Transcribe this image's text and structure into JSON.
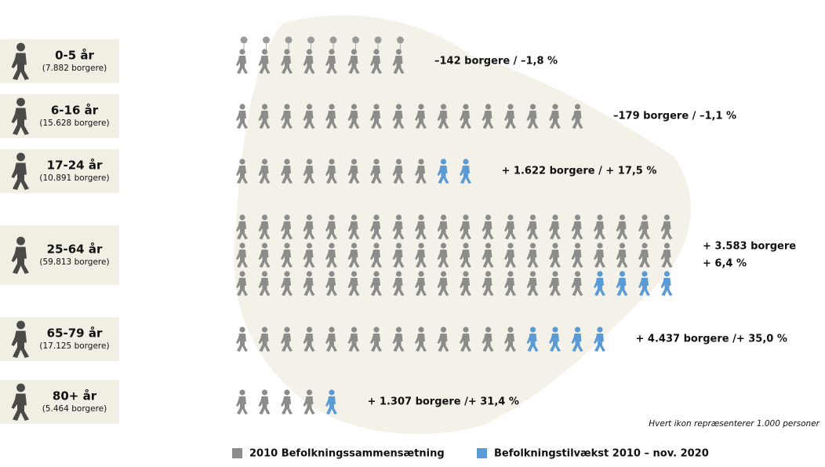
{
  "chart_data": {
    "type": "pictogram",
    "categories": [
      "0-5 år",
      "6-16 år",
      "17-24 år",
      "25-64 år",
      "65-79 år",
      "80+ år"
    ],
    "category_notes": [
      "(7.882 borgere)",
      "(15.628 borgere)",
      "(10.891 borgere)",
      "(59.813 borgere)",
      "(17.125 borgere)",
      "(5.464 borgere)"
    ],
    "series": [
      {
        "name": "2010 Befolkningssammensætning",
        "color": "#8c8c8a",
        "values": [
          8,
          16,
          9,
          56,
          13,
          4
        ]
      },
      {
        "name": "Befolkningstilvækst 2010 – nov. 2020",
        "color": "#5b9bd5",
        "values": [
          0,
          0,
          2,
          4,
          4,
          1
        ]
      }
    ],
    "annotations": [
      [
        "–142 borgere / –1,8 %"
      ],
      [
        "–179 borgere / –1,1 %"
      ],
      [
        "+ 1.622 borgere / + 17,5 %"
      ],
      [
        "+ 3.583 borgere",
        "+ 6,4 %"
      ],
      [
        "+ 4.437 borgere /+ 35,0 %"
      ],
      [
        "+ 1.307 borgere /+ 31,4 %"
      ]
    ],
    "note": "Hvert ikon repræsenterer 1.000 personer"
  }
}
